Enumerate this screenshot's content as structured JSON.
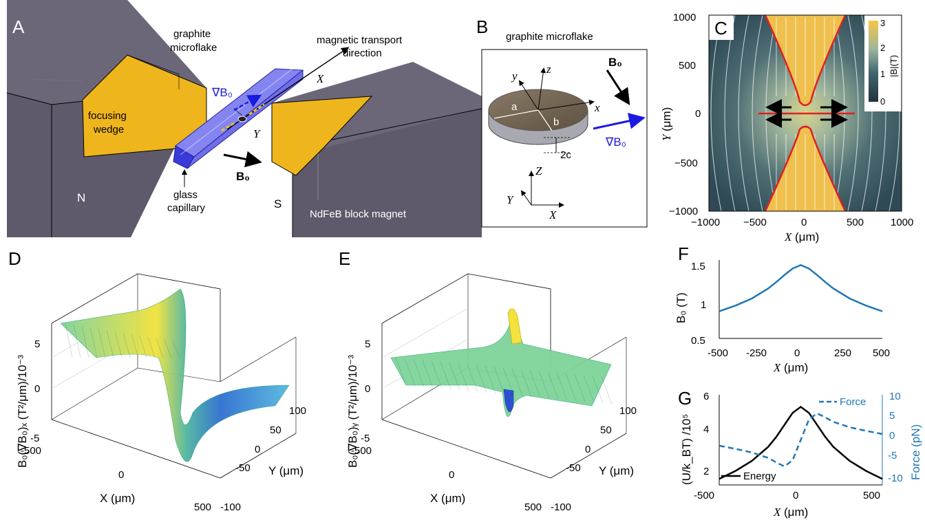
{
  "panels": {
    "A": {
      "letter": "A",
      "labels": {
        "graphite": "graphite",
        "microflake": "microflake",
        "mag_transport": "magnetic transport",
        "direction": "direction",
        "grad_b0": "∇B₀",
        "x_axis": "X",
        "y_axis": "Y",
        "focusing": "focusing",
        "wedge": "wedge",
        "b0": "B₀",
        "glass": "glass",
        "capillary": "capillary",
        "north": "N",
        "south": "S",
        "magnet": "NdFeB block magnet"
      },
      "colors": {
        "magnet": "#5f5b6b",
        "magnet_dark": "#4a4756",
        "wedge": "#efb51c",
        "capillary": "#8080f0"
      }
    },
    "B": {
      "letter": "B",
      "title": "graphite microflake",
      "labels": {
        "b0": "B₀",
        "grad_b0": "∇B₀",
        "a": "a",
        "b": "b",
        "c": "2c",
        "x": "x",
        "y": "y",
        "z": "z",
        "X": "X",
        "Y": "Y",
        "Z": "Z"
      }
    },
    "C": {
      "letter": "C",
      "colorbar_label": "|B|(T)",
      "colorbar_ticks": [
        "3",
        "2",
        "1",
        "0"
      ],
      "xlabel_var": "X",
      "xlabel_unit": "(μm)",
      "ylabel_var": "Y",
      "ylabel_unit": "(μm)",
      "xticks": [
        "−1000",
        "−500",
        "0",
        "500",
        "1000"
      ],
      "yticks": [
        "1000",
        "500",
        "0",
        "−500",
        "−1000"
      ],
      "colors": {
        "field_low": "#2f4a56",
        "field_high": "#f0c050",
        "boundary": "#e02020"
      }
    },
    "D": {
      "letter": "D",
      "zlabel": "B₀(∇B₀)ₓ  (T²/μm)/10⁻³",
      "zticks": [
        "5",
        "0",
        "-5"
      ],
      "xticks": [
        "-500",
        "0",
        "500"
      ],
      "yticks": [
        "100",
        "50",
        "0",
        "-50",
        "-100"
      ],
      "xlabel": "X (μm)",
      "ylabel": "Y (μm)"
    },
    "E": {
      "letter": "E",
      "zlabel": "B₀(∇B₀)ᵧ  (T²/μm)/10⁻³",
      "zticks": [
        "5",
        "0",
        "-5"
      ],
      "xticks": [
        "-500",
        "0",
        "500"
      ],
      "yticks": [
        "100",
        "50",
        "0",
        "-50",
        "-100"
      ],
      "xlabel": "X (μm)",
      "ylabel": "Y (μm)"
    },
    "F": {
      "letter": "F",
      "ylabel": "B₀ (T)",
      "xlabel_var": "X",
      "xlabel_unit": "(μm)",
      "xticks": [
        "-500",
        "-250",
        "0",
        "250",
        "500"
      ],
      "yticks": [
        "1.5",
        "1",
        "0.5"
      ]
    },
    "G": {
      "letter": "G",
      "ylabel_left": "(U/k_BT) /10⁵",
      "ylabel_right": "Force (pN)",
      "xlabel_var": "X",
      "xlabel_unit": "(μm)",
      "xticks": [
        "-500",
        "0",
        "500"
      ],
      "yticks_left": [
        "6",
        "4",
        "2"
      ],
      "yticks_right": [
        "10",
        "5",
        "0",
        "-5",
        "-10"
      ],
      "legend_energy": "Energy",
      "legend_force": "Force"
    }
  },
  "chart_data": [
    {
      "panel": "F",
      "type": "line",
      "x": [
        -500,
        -400,
        -300,
        -200,
        -150,
        -100,
        -50,
        0,
        50,
        100,
        150,
        200,
        300,
        400,
        500
      ],
      "series": [
        {
          "values": [
            0.88,
            0.96,
            1.06,
            1.2,
            1.29,
            1.39,
            1.48,
            1.53,
            1.48,
            1.39,
            1.29,
            1.2,
            1.06,
            0.96,
            0.88
          ],
          "color": "#1f77b4"
        }
      ],
      "xlim": [
        -500,
        500
      ],
      "ylim": [
        0.5,
        1.6
      ]
    },
    {
      "panel": "G",
      "type": "line",
      "x": [
        -500,
        -400,
        -300,
        -200,
        -150,
        -100,
        -50,
        0,
        50,
        100,
        150,
        200,
        300,
        400,
        500
      ],
      "series": [
        {
          "name": "Energy",
          "axis": "left",
          "values": [
            1.8,
            2.2,
            2.7,
            3.4,
            3.9,
            4.5,
            5.1,
            5.4,
            5.1,
            4.5,
            3.9,
            3.4,
            2.7,
            2.2,
            1.8
          ],
          "color": "#000000"
        },
        {
          "name": "Force",
          "axis": "right",
          "dashed": true,
          "values": [
            -1.3,
            -2.0,
            -2.8,
            -4.0,
            -5.0,
            -5.9,
            -4.5,
            0,
            4.5,
            5.9,
            5.0,
            4.0,
            2.8,
            2.0,
            1.3
          ],
          "color": "#1f77b4"
        }
      ],
      "xlim": [
        -500,
        500
      ],
      "ylim_left": [
        1.5,
        6
      ],
      "ylim_right": [
        -10,
        10
      ]
    }
  ]
}
